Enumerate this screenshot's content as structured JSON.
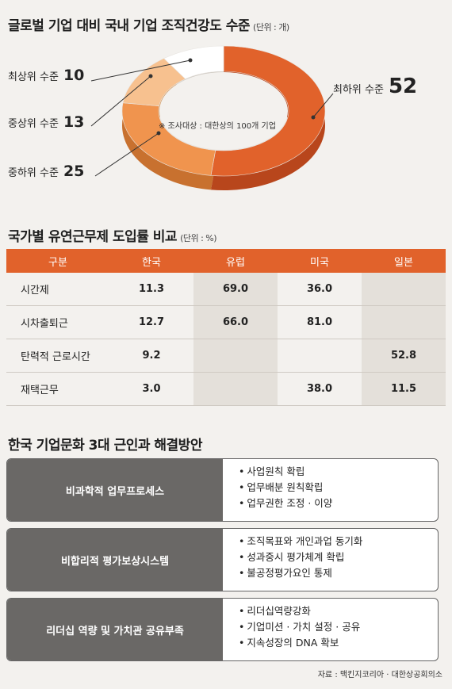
{
  "donut_section": {
    "title": "글로벌 기업 대비 국내 기업 조직건강도 수준",
    "unit": "(단위 : 개)",
    "note": "※ 조사대상 : 대한상의 100개 기업"
  },
  "table_section": {
    "title": "국가별 유연근무제 도입률 비교",
    "unit": "(단위 : %)",
    "headers": [
      "구분",
      "한국",
      "유럽",
      "미국",
      "일본"
    ],
    "rows": [
      [
        "시간제",
        "11.3",
        "69.0",
        "36.0",
        ""
      ],
      [
        "시차출퇴근",
        "12.7",
        "66.0",
        "81.0",
        ""
      ],
      [
        "탄력적 근로시간",
        "9.2",
        "",
        "",
        "52.8"
      ],
      [
        "재택근무",
        "3.0",
        "",
        "38.0",
        "11.5"
      ]
    ]
  },
  "causes_section": {
    "title": "한국 기업문화 3대 근인과 해결방안",
    "items": [
      {
        "cause": "비과학적 업무프로세스",
        "solutions": [
          "사업원칙 확립",
          "업무배분 원칙확립",
          "업무권한 조정 · 이양"
        ]
      },
      {
        "cause": "비합리적 평가보상시스템",
        "solutions": [
          "조직목표와 개인과업 동기화",
          "성과중시 평가체계 확립",
          "불공정평가요인 통제"
        ]
      },
      {
        "cause": "리더십 역량 및 가치관 공유부족",
        "solutions": [
          "리더십역량강화",
          "기업미션 · 가치 설정 · 공유",
          "지속성장의 DNA 확보"
        ]
      }
    ]
  },
  "source": "자료 : 맥킨지코리아 · 대한상공회의소",
  "colors": {
    "accent": "#e1622b",
    "slice_worst": "#e1622b",
    "slice_mid_low": "#f0944e",
    "slice_mid_high": "#f7c18f",
    "slice_best": "#ffffff",
    "cause_bg": "#6a6866"
  },
  "chart_data": [
    {
      "type": "pie",
      "title": "글로벌 기업 대비 국내 기업 조직건강도 수준",
      "unit": "개",
      "categories": [
        "최하위 수준",
        "중하위 수준",
        "중상위 수준",
        "최상위 수준"
      ],
      "values": [
        52,
        25,
        13,
        10
      ]
    },
    {
      "type": "table",
      "title": "국가별 유연근무제 도입률 비교",
      "unit": "%",
      "columns": [
        "구분",
        "한국",
        "유럽",
        "미국",
        "일본"
      ],
      "rows": [
        [
          "시간제",
          11.3,
          69.0,
          36.0,
          null
        ],
        [
          "시차출퇴근",
          12.7,
          66.0,
          81.0,
          null
        ],
        [
          "탄력적 근로시간",
          9.2,
          null,
          null,
          52.8
        ],
        [
          "재택근무",
          3.0,
          null,
          38.0,
          11.5
        ]
      ]
    }
  ]
}
